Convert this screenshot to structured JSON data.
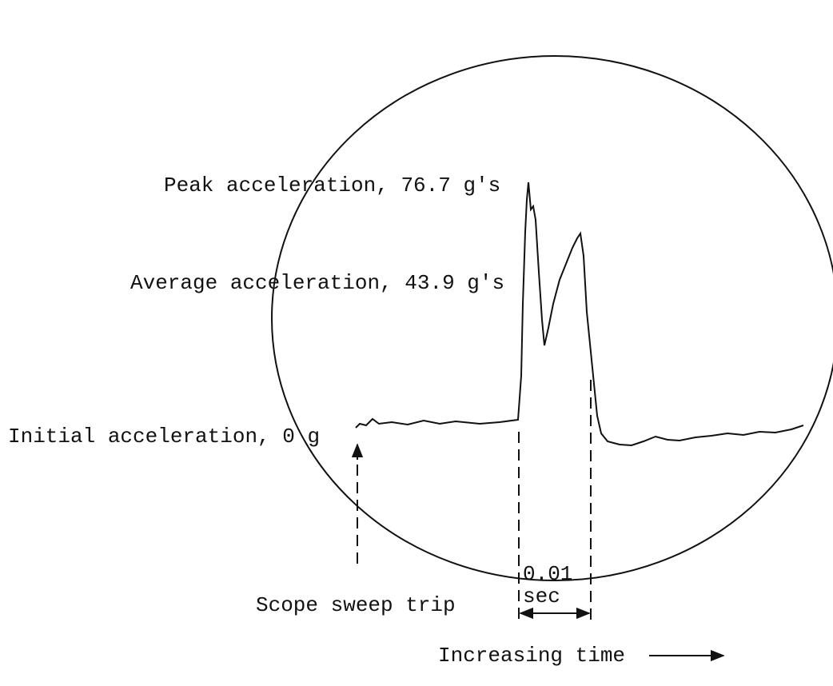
{
  "labels": {
    "peak": "Peak acceleration, 76.7 g's",
    "average": "Average acceleration, 43.9 g's",
    "initial": "Initial acceleration, 0 g",
    "sweep": "Scope sweep trip",
    "interval": "0.01",
    "interval_unit": "sec",
    "time_axis": "Increasing time"
  }
}
